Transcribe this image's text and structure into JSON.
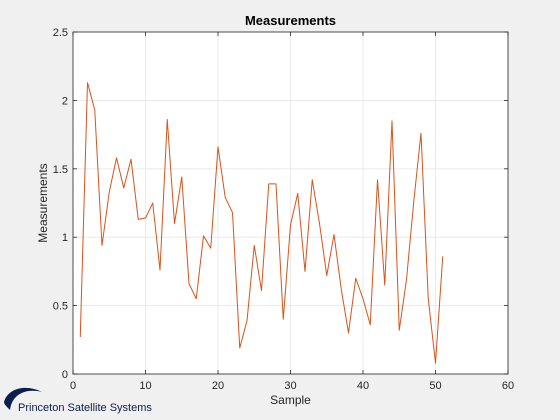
{
  "chart_data": {
    "type": "line",
    "title": "Measurements",
    "xlabel": "Sample",
    "ylabel": "Measurements",
    "xlim": [
      0,
      60
    ],
    "ylim": [
      0,
      2.5
    ],
    "xticks": [
      "0",
      "10",
      "20",
      "30",
      "40",
      "50",
      "60"
    ],
    "yticks": [
      "0",
      "0.5",
      "1",
      "1.5",
      "2",
      "2.5"
    ],
    "grid": true,
    "legend": "none",
    "series": [
      {
        "color": "#d95319",
        "x": [
          1,
          2,
          3,
          4,
          5,
          6,
          7,
          8,
          9,
          10,
          11,
          12,
          13,
          14,
          15,
          16,
          17,
          18,
          19,
          20,
          21,
          22,
          23,
          24,
          25,
          26,
          27,
          28,
          29,
          30,
          31,
          32,
          33,
          34,
          35,
          36,
          37,
          38,
          39,
          40,
          41,
          42,
          43,
          44,
          45,
          46,
          47,
          48,
          49,
          50,
          51
        ],
        "y": [
          0.27,
          2.13,
          1.93,
          0.94,
          1.33,
          1.58,
          1.36,
          1.57,
          1.13,
          1.14,
          1.25,
          0.76,
          1.86,
          1.1,
          1.44,
          0.66,
          0.55,
          1.01,
          0.92,
          1.66,
          1.29,
          1.18,
          0.19,
          0.39,
          0.94,
          0.61,
          1.39,
          1.39,
          0.4,
          1.09,
          1.32,
          0.75,
          1.42,
          1.1,
          0.72,
          1.02,
          0.62,
          0.3,
          0.7,
          0.55,
          0.36,
          1.42,
          0.65,
          1.85,
          0.32,
          0.69,
          1.26,
          1.76,
          0.55,
          0.08,
          0.86
        ]
      }
    ]
  },
  "logo": {
    "text": "Princeton Satellite Systems",
    "color": "#0b1e4d"
  }
}
